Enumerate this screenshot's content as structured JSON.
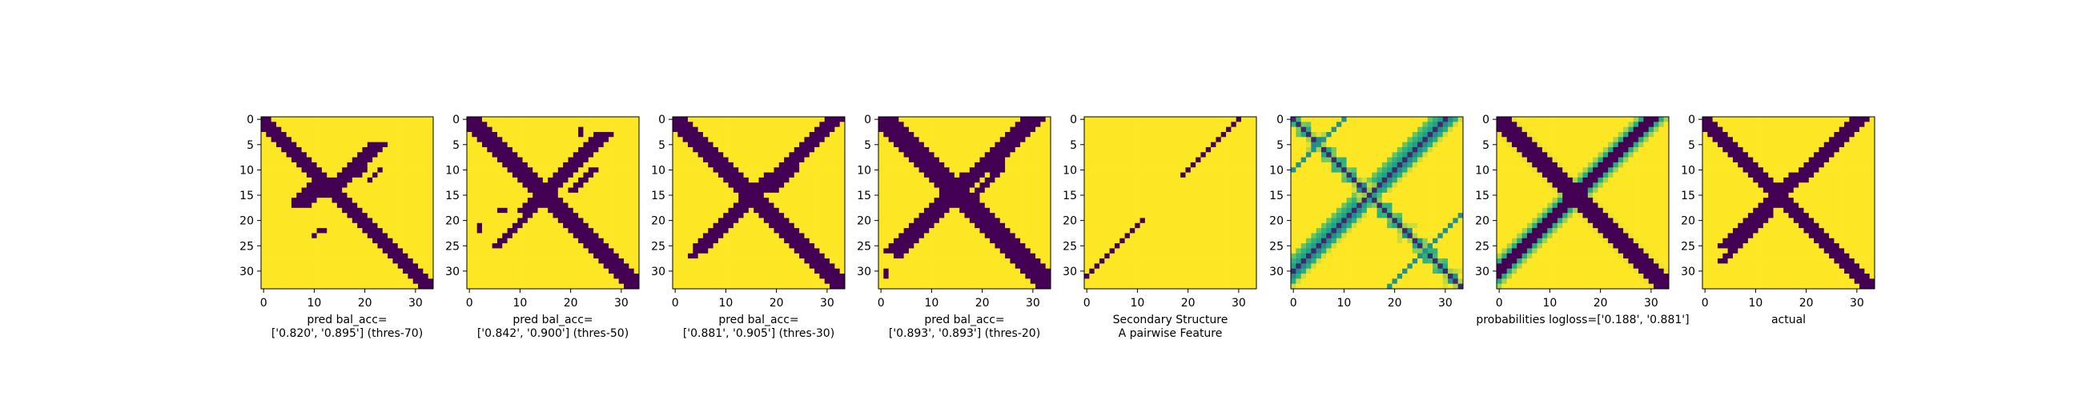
{
  "figure": {
    "colors": {
      "low": "#440154",
      "high": "#fde725",
      "mid1": "#35b779",
      "mid2": "#1f9e89",
      "mid3": "#31688e",
      "axis": "#000000"
    },
    "axis_ticks": [
      "0",
      "5",
      "10",
      "15",
      "20",
      "25",
      "30"
    ],
    "matrix_size": 34
  },
  "chart_data": [
    {
      "type": "heatmap",
      "title_lines": [
        "pred bal_acc=",
        "['0.820', '0.895'] (thres-70)"
      ],
      "matrix": "binary",
      "pattern": "pred70",
      "xticks": [
        0,
        10,
        20,
        30
      ],
      "yticks": [
        0,
        5,
        10,
        15,
        20,
        25,
        30
      ],
      "xlim": [
        -0.5,
        33.5
      ],
      "ylim": [
        33.5,
        -0.5
      ]
    },
    {
      "type": "heatmap",
      "title_lines": [
        "pred bal_acc=",
        "['0.842', '0.900'] (thres-50)"
      ],
      "matrix": "binary",
      "pattern": "pred50",
      "xticks": [
        0,
        10,
        20,
        30
      ],
      "yticks": [
        0,
        5,
        10,
        15,
        20,
        25,
        30
      ],
      "xlim": [
        -0.5,
        33.5
      ],
      "ylim": [
        33.5,
        -0.5
      ]
    },
    {
      "type": "heatmap",
      "title_lines": [
        "pred bal_acc=",
        "['0.881', '0.905'] (thres-30)"
      ],
      "matrix": "binary",
      "pattern": "pred30",
      "xticks": [
        0,
        10,
        20,
        30
      ],
      "yticks": [
        0,
        5,
        10,
        15,
        20,
        25,
        30
      ],
      "xlim": [
        -0.5,
        33.5
      ],
      "ylim": [
        33.5,
        -0.5
      ]
    },
    {
      "type": "heatmap",
      "title_lines": [
        "pred bal_acc=",
        "['0.893', '0.893'] (thres-20)"
      ],
      "matrix": "binary",
      "pattern": "pred20",
      "xticks": [
        0,
        10,
        20,
        30
      ],
      "yticks": [
        0,
        5,
        10,
        15,
        20,
        25,
        30
      ],
      "xlim": [
        -0.5,
        33.5
      ],
      "ylim": [
        33.5,
        -0.5
      ]
    },
    {
      "type": "heatmap",
      "title_lines": [
        "Secondary Structure",
        "A pairwise Feature"
      ],
      "matrix": "binary",
      "pattern": "secondary",
      "xticks": [
        0,
        10,
        20,
        30
      ],
      "yticks": [
        0,
        5,
        10,
        15,
        20,
        25,
        30
      ],
      "xlim": [
        -0.5,
        33.5
      ],
      "ylim": [
        33.5,
        -0.5
      ]
    },
    {
      "type": "heatmap",
      "title_lines": [],
      "matrix": "continuous",
      "pattern": "feature",
      "xticks": [
        0,
        10,
        20,
        30
      ],
      "yticks": [
        0,
        5,
        10,
        15,
        20,
        25,
        30
      ],
      "xlim": [
        -0.5,
        33.5
      ],
      "ylim": [
        33.5,
        -0.5
      ]
    },
    {
      "type": "heatmap",
      "title_lines": [
        "probabilities logloss=['0.188', '0.881']"
      ],
      "matrix": "continuous",
      "pattern": "prob",
      "xticks": [
        0,
        10,
        20,
        30
      ],
      "yticks": [
        0,
        5,
        10,
        15,
        20,
        25,
        30
      ],
      "xlim": [
        -0.5,
        33.5
      ],
      "ylim": [
        33.5,
        -0.5
      ]
    },
    {
      "type": "heatmap",
      "title_lines": [
        "actual"
      ],
      "matrix": "binary",
      "pattern": "actual",
      "xticks": [
        0,
        10,
        20,
        30
      ],
      "yticks": [
        0,
        5,
        10,
        15,
        20,
        25,
        30
      ],
      "xlim": [
        -0.5,
        33.5
      ],
      "ylim": [
        33.5,
        -0.5
      ]
    }
  ]
}
